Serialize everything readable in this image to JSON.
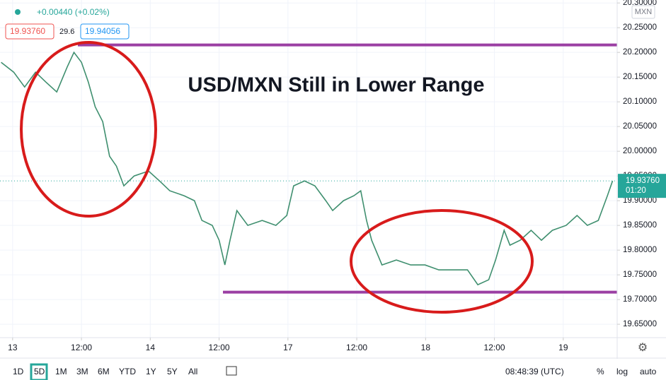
{
  "chart_data": {
    "type": "line",
    "title": "USD/MXN Still in Lower Range",
    "header": {
      "change": "+0.00440 (+0.02%)",
      "bid": "19.93760",
      "spread": "29.6",
      "ask": "19.94056"
    },
    "currency": "MXN",
    "last_price_label": "19.93760",
    "countdown": "01:20",
    "series": [
      {
        "color": "#3f8f6f",
        "x": [
          -2.0,
          0.2,
          2.1,
          4.0,
          5.8,
          7.7,
          9.5,
          10.7,
          12.0,
          13.2,
          14.4,
          15.7,
          16.9,
          18.1,
          19.4,
          21.2,
          23.7,
          25.6,
          27.4,
          29.9,
          31.7,
          33.0,
          34.8,
          36.0,
          37.0,
          37.9,
          39.1,
          41.0,
          43.5,
          45.9,
          47.8,
          49.0,
          50.9,
          52.7,
          54.6,
          55.8,
          57.7,
          59.5,
          60.7,
          61.7,
          62.6,
          64.4,
          66.9,
          69.4,
          71.9,
          74.3,
          76.8,
          79.3,
          81.1,
          83.0,
          84.2,
          85.7,
          86.7,
          88.5,
          90.4,
          92.2,
          94.1,
          96.5,
          98.4,
          100.2,
          102.1,
          103.7,
          104.6
        ],
        "values": [
          20.18,
          20.16,
          20.13,
          20.16,
          20.14,
          20.12,
          20.17,
          20.2,
          20.18,
          20.14,
          20.09,
          20.06,
          19.99,
          19.97,
          19.93,
          19.95,
          19.96,
          19.94,
          19.92,
          19.91,
          19.9,
          19.86,
          19.85,
          19.82,
          19.77,
          19.82,
          19.88,
          19.85,
          19.86,
          19.85,
          19.87,
          19.93,
          19.94,
          19.93,
          19.9,
          19.88,
          19.9,
          19.91,
          19.92,
          19.86,
          19.82,
          19.77,
          19.78,
          19.77,
          19.77,
          19.76,
          19.76,
          19.76,
          19.73,
          19.74,
          19.78,
          19.84,
          19.81,
          19.82,
          19.84,
          19.82,
          19.84,
          19.85,
          19.87,
          19.85,
          19.86,
          19.91,
          19.94
        ]
      }
    ],
    "hlines": {
      "color": "#9b3fa3",
      "values": [
        20.215,
        19.715
      ]
    },
    "xlim": [
      -2.2,
      105.4
    ],
    "xticks": [
      {
        "value": 0,
        "label": "13"
      },
      {
        "value": 12,
        "label": "12:00"
      },
      {
        "value": 24,
        "label": "14"
      },
      {
        "value": 36,
        "label": "12:00"
      },
      {
        "value": 48,
        "label": "17"
      },
      {
        "value": 60,
        "label": "12:00"
      },
      {
        "value": 72,
        "label": "18"
      },
      {
        "value": 84,
        "label": "12:00"
      },
      {
        "value": 96,
        "label": "19"
      }
    ],
    "ylim": [
      19.623,
      20.306
    ],
    "yticks": [
      {
        "value": 20.3,
        "label": "20.30000"
      },
      {
        "value": 20.25,
        "label": "20.25000"
      },
      {
        "value": 20.2,
        "label": "20.20000"
      },
      {
        "value": 20.15,
        "label": "20.15000"
      },
      {
        "value": 20.1,
        "label": "20.10000"
      },
      {
        "value": 20.05,
        "label": "20.05000"
      },
      {
        "value": 20.0,
        "label": "20.00000"
      },
      {
        "value": 19.95,
        "label": "19.95000"
      },
      {
        "value": 19.9,
        "label": "19.90000"
      },
      {
        "value": 19.85,
        "label": "19.85000"
      },
      {
        "value": 19.8,
        "label": "19.80000"
      },
      {
        "value": 19.75,
        "label": "19.75000"
      },
      {
        "value": 19.7,
        "label": "19.70000"
      },
      {
        "value": 19.65,
        "label": "19.65000"
      }
    ],
    "grid": true,
    "toolbar": {
      "ranges": [
        "1D",
        "5D",
        "1M",
        "3M",
        "6M",
        "YTD",
        "1Y",
        "5Y",
        "All"
      ],
      "active": "5D",
      "clock": "08:48:39 (UTC)",
      "options": [
        "%",
        "log",
        "auto"
      ]
    }
  }
}
